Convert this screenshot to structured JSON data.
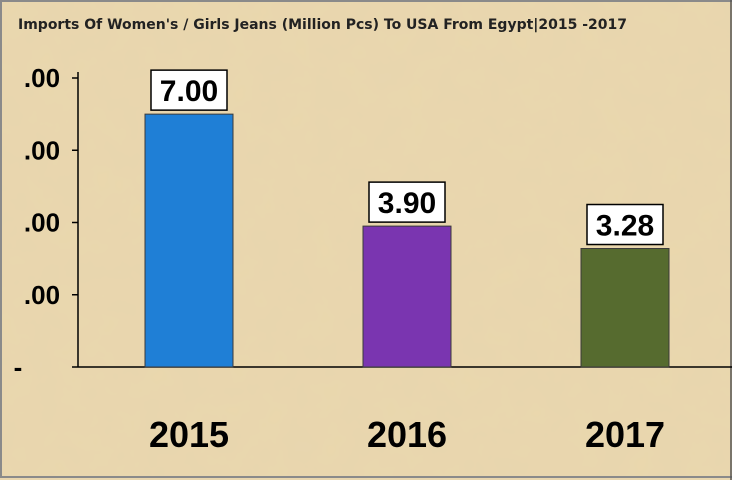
{
  "chart_data": {
    "type": "bar",
    "title": "Imports Of Women's / Girls Jeans (Million Pcs) To USA From Egypt|2015 -2017",
    "categories": [
      "2015",
      "2016",
      "2017"
    ],
    "values": [
      7.0,
      3.9,
      3.28
    ],
    "data_labels": [
      "7.00",
      "3.90",
      "3.28"
    ],
    "y_ticks": [
      {
        "value": 0,
        "label": "-"
      },
      {
        "value": 2,
        "label": ".00"
      },
      {
        "value": 4,
        "label": ".00"
      },
      {
        "value": 6,
        "label": ".00"
      },
      {
        "value": 8,
        "label": ".00"
      }
    ],
    "ylim": [
      0,
      8
    ],
    "grid": false,
    "legend": "none",
    "colors": [
      "#1f7fd6",
      "#7a35b0",
      "#566b2f"
    ],
    "background_color": "#e8d3a6"
  }
}
